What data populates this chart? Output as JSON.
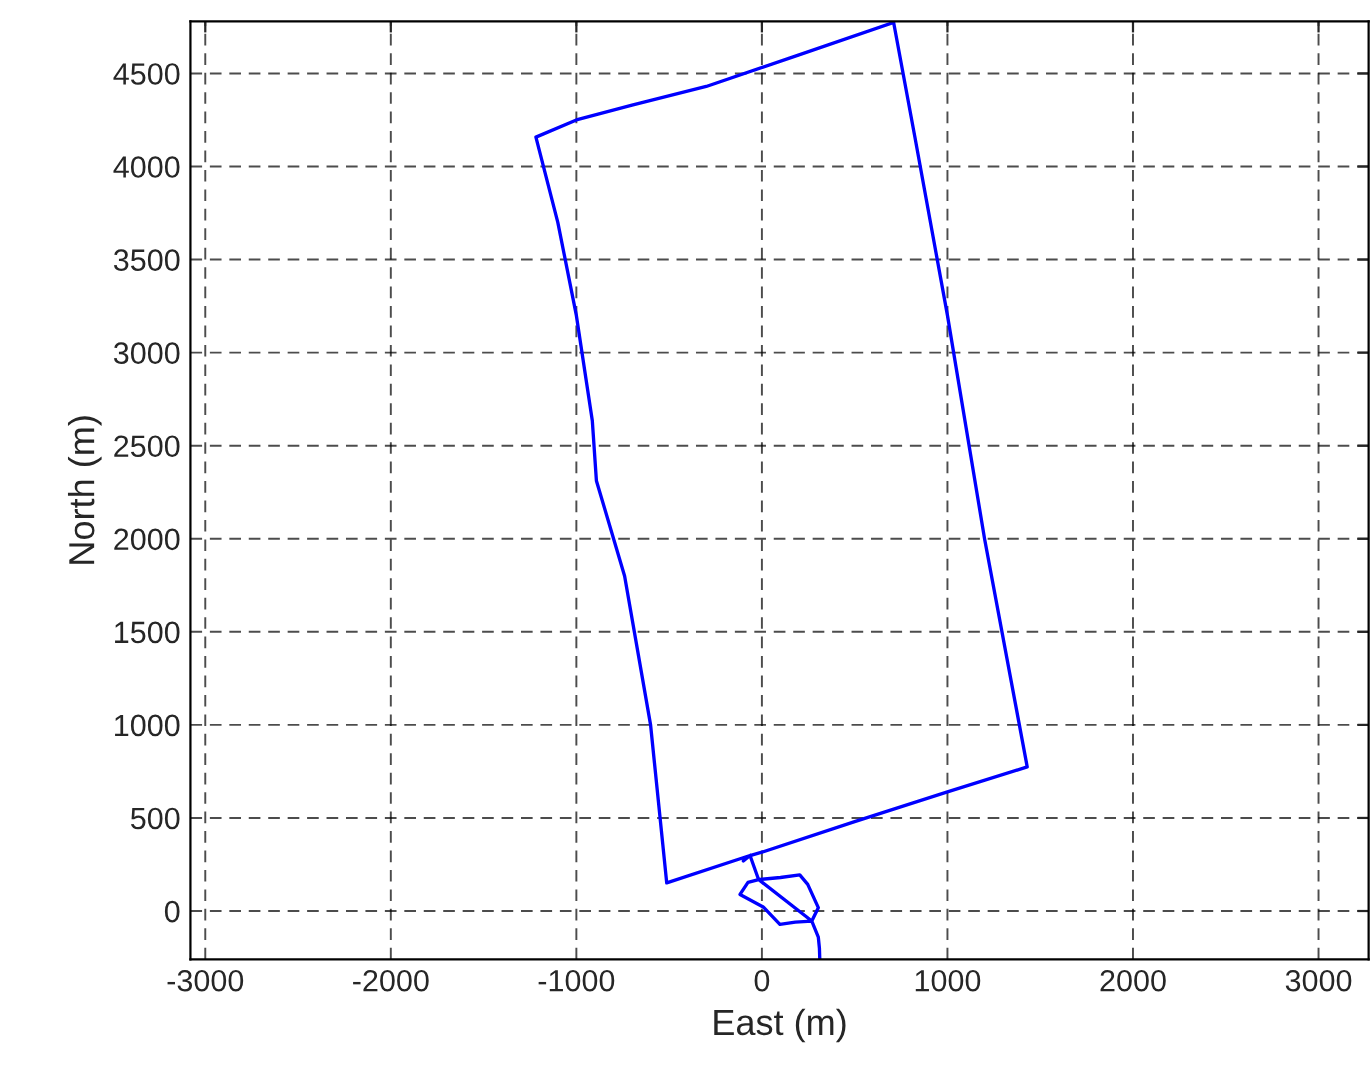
{
  "chart_data": {
    "type": "line",
    "xlabel": "East (m)",
    "ylabel": "North (m)",
    "xlim": [
      -3080,
      3270
    ],
    "ylim": [
      -260,
      4780
    ],
    "xticks": [
      -3000,
      -2000,
      -1000,
      0,
      1000,
      2000,
      3000
    ],
    "yticks": [
      0,
      500,
      1000,
      1500,
      2000,
      2500,
      3000,
      3500,
      4000,
      4500
    ],
    "grid": true,
    "line_style": "solid",
    "marker": "none",
    "series": [
      {
        "color": "#0000ff",
        "x": [
          312,
          310,
          304,
          269,
          180,
          97,
          7,
          -118,
          -75,
          -18,
          100,
          204,
          247,
          304,
          269,
          -18,
          -64,
          -100,
          -64,
          -513,
          -600,
          -740,
          -892,
          -914,
          -1000,
          -1100,
          -1218,
          -1000,
          -700,
          -300,
          200,
          710,
          824,
          1000,
          1200,
          1430,
          1000,
          500,
          0,
          -64
        ],
        "values": [
          -260,
          -200,
          -140,
          -54,
          -60,
          -72,
          22,
          89,
          154,
          169,
          180,
          194,
          143,
          18,
          -54,
          169,
          298,
          269,
          298,
          151,
          1000,
          1800,
          2312,
          2634,
          3200,
          3700,
          4158,
          4250,
          4330,
          4430,
          4600,
          4774,
          4161,
          3200,
          2000,
          774,
          640,
          480,
          316,
          298
        ]
      }
    ]
  }
}
